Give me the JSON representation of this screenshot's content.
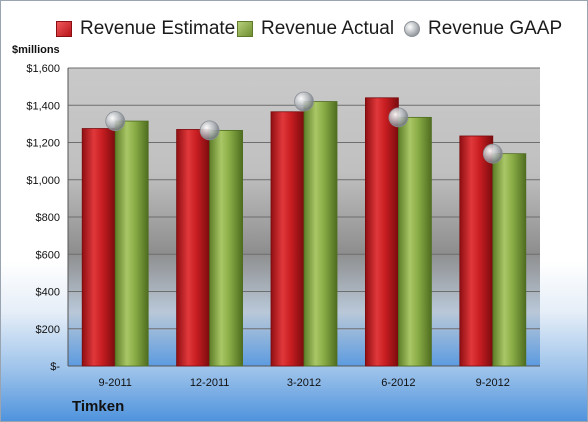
{
  "legend": {
    "estimate": "Revenue Estimate",
    "actual": "Revenue Actual",
    "gaap": "Revenue GAAP"
  },
  "units_label": "$millions",
  "company": "Timken",
  "colors": {
    "estimate": "#c81e22",
    "actual": "#8aac46",
    "gaap": "#a9adb2"
  },
  "chart_data": {
    "type": "bar",
    "categories": [
      "9-2011",
      "12-2011",
      "3-2012",
      "6-2012",
      "9-2012"
    ],
    "series": [
      {
        "name": "Revenue Estimate",
        "values": [
          1275,
          1270,
          1365,
          1440,
          1235
        ]
      },
      {
        "name": "Revenue Actual",
        "values": [
          1315,
          1265,
          1420,
          1335,
          1140
        ]
      },
      {
        "name": "Revenue GAAP",
        "values": [
          1315,
          1265,
          1420,
          1335,
          1140
        ],
        "marker": "circle"
      }
    ],
    "ylabel": "$millions",
    "ylim": [
      0,
      1600
    ],
    "yticks": [
      0,
      200,
      400,
      600,
      800,
      1000,
      1200,
      1400,
      1600
    ],
    "ytick_labels": [
      "$-",
      "$200",
      "$400",
      "$600",
      "$800",
      "$1,000",
      "$1,200",
      "$1,400",
      "$1,600"
    ],
    "grid": true,
    "legend_position": "top"
  }
}
